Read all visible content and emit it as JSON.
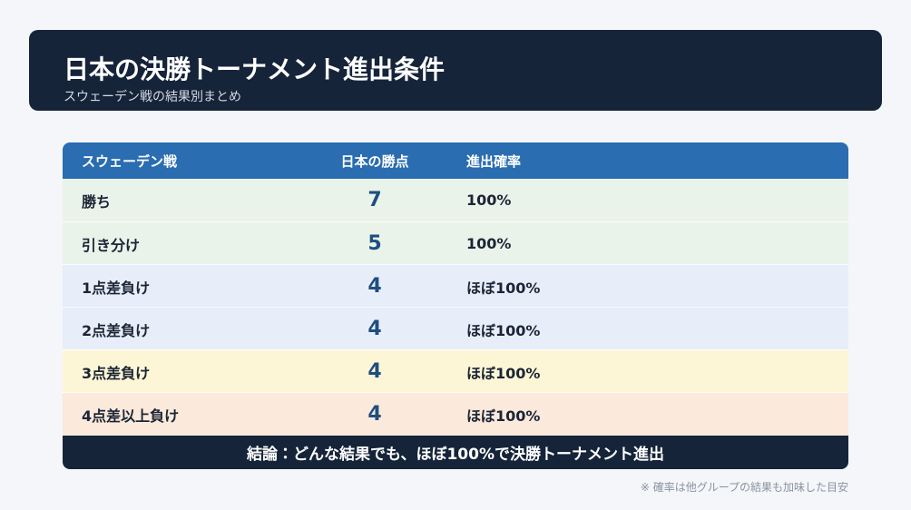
{
  "header": {
    "title": "日本の決勝トーナメント進出条件",
    "subtitle": "スウェーデン戦の結果別まとめ"
  },
  "table": {
    "columns": [
      "スウェーデン戦",
      "日本の勝点",
      "進出確率"
    ],
    "rows": [
      [
        "勝ち",
        7,
        "100%"
      ],
      [
        "引き分け",
        5,
        "100%"
      ],
      [
        "1点差負け",
        4,
        "ほぼ100%"
      ],
      [
        "2点差負け",
        4,
        "ほぼ100%"
      ],
      [
        "3点差負け",
        4,
        "ほぼ100%"
      ],
      [
        "4点差以上負け",
        4,
        "ほぼ100%"
      ]
    ],
    "conclusion": "結論：どんな結果でも、ほぼ100%で決勝トーナメント進出"
  },
  "footnote": "※ 確率は他グループの結果も加味した目安"
}
